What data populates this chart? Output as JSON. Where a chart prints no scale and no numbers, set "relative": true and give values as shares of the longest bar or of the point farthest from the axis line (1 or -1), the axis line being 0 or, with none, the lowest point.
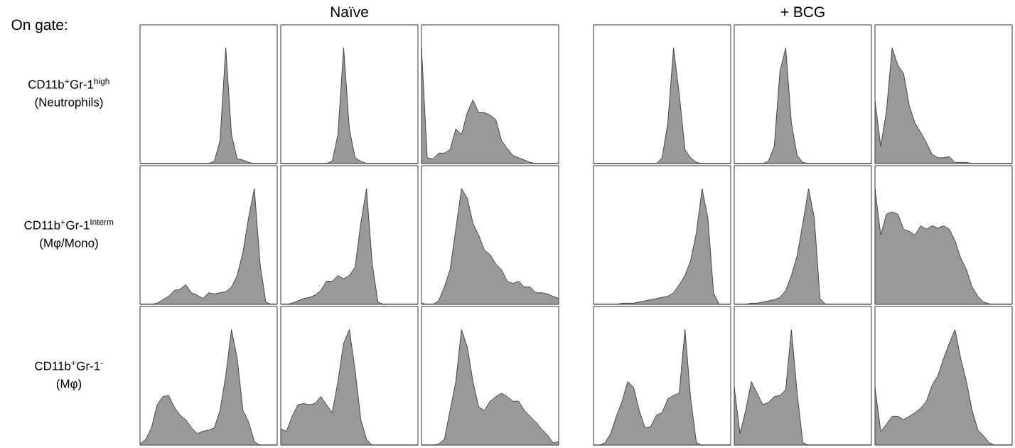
{
  "chart_data": [
    {
      "type": "area",
      "relative": true,
      "color": "#999999",
      "subtitle": "On gate:",
      "ylabel": "CD11b$^{+}$Gr-1$^{high}$",
      "annotations": [
        "(Neutrophils)"
      ],
      "categories": [
        null,
        null,
        null,
        null,
        null,
        null,
        null,
        null,
        null,
        null,
        null,
        null,
        null,
        null,
        null,
        null,
        null,
        null,
        null,
        null,
        null,
        null,
        null,
        null,
        null
      ],
      "values": [
        0,
        0,
        0,
        0,
        0,
        0,
        0,
        0,
        0,
        0,
        0,
        0,
        0,
        0.02,
        0.2,
        1.0,
        0.25,
        0.04,
        0.03,
        0.01,
        0,
        0,
        0,
        0,
        0
      ]
    },
    {
      "type": "area",
      "relative": true,
      "color": "#999999",
      "title": "Naïve",
      "categories": [
        null,
        null,
        null,
        null,
        null,
        null,
        null,
        null,
        null,
        null,
        null,
        null,
        null,
        null,
        null,
        null,
        null,
        null,
        null,
        null,
        null,
        null,
        null,
        null,
        null
      ],
      "values": [
        0,
        0,
        0,
        0,
        0,
        0,
        0,
        0,
        0,
        0.02,
        0.25,
        1.0,
        0.3,
        0.05,
        0.02,
        0,
        0,
        0,
        0,
        0,
        0,
        0,
        0,
        0,
        0
      ]
    },
    {
      "type": "area",
      "relative": true,
      "color": "#999999",
      "categories": [
        null,
        null,
        null,
        null,
        null,
        null,
        null,
        null,
        null,
        null,
        null,
        null,
        null,
        null,
        null,
        null,
        null,
        null,
        null,
        null,
        null,
        null,
        null,
        null,
        null
      ],
      "values": [
        1.0,
        0.05,
        0.04,
        0.09,
        0.09,
        0.12,
        0.3,
        0.25,
        0.44,
        0.55,
        0.44,
        0.44,
        0.42,
        0.38,
        0.2,
        0.13,
        0.07,
        0.05,
        0.03,
        0.01,
        0,
        0,
        0,
        0,
        0
      ]
    },
    {
      "type": "area",
      "relative": true,
      "color": "#999999",
      "categories": [
        null,
        null,
        null,
        null,
        null,
        null,
        null,
        null,
        null,
        null,
        null,
        null,
        null,
        null,
        null,
        null,
        null,
        null,
        null,
        null,
        null,
        null,
        null,
        null,
        null
      ],
      "values": [
        0,
        0,
        0,
        0,
        0,
        0,
        0,
        0,
        0,
        0,
        0,
        0,
        0.05,
        0.35,
        1.0,
        0.6,
        0.12,
        0.05,
        0.01,
        0,
        0,
        0,
        0,
        0,
        0
      ]
    },
    {
      "type": "area",
      "relative": true,
      "color": "#999999",
      "title": "+ BCG",
      "categories": [
        null,
        null,
        null,
        null,
        null,
        null,
        null,
        null,
        null,
        null,
        null,
        null,
        null,
        null,
        null,
        null,
        null,
        null,
        null,
        null,
        null,
        null,
        null,
        null,
        null
      ],
      "values": [
        0,
        0,
        0,
        0,
        0,
        0,
        0.02,
        0.15,
        0.8,
        1.0,
        0.35,
        0.07,
        0.01,
        0,
        0,
        0,
        0,
        0,
        0,
        0,
        0,
        0,
        0,
        0,
        0
      ]
    },
    {
      "type": "area",
      "relative": true,
      "color": "#999999",
      "categories": [
        null,
        null,
        null,
        null,
        null,
        null,
        null,
        null,
        null,
        null,
        null,
        null,
        null,
        null,
        null,
        null,
        null,
        null,
        null,
        null,
        null,
        null,
        null,
        null,
        null
      ],
      "values": [
        0.54,
        0.15,
        0.45,
        1.0,
        0.85,
        0.78,
        0.5,
        0.35,
        0.27,
        0.18,
        0.08,
        0.05,
        0.05,
        0.06,
        0.01,
        0.01,
        0.01,
        0,
        0,
        0,
        0,
        0,
        0,
        0,
        0
      ]
    },
    {
      "type": "area",
      "relative": true,
      "color": "#999999",
      "ylabel": "CD11b$^{+}$Gr-1$^{Interm}$",
      "annotations": [
        "(Mφ/Mono)"
      ],
      "categories": [
        null,
        null,
        null,
        null,
        null,
        null,
        null,
        null,
        null,
        null,
        null,
        null,
        null,
        null,
        null,
        null,
        null,
        null,
        null,
        null,
        null,
        null,
        null,
        null,
        null
      ],
      "values": [
        0,
        0,
        0,
        0.01,
        0.04,
        0.07,
        0.12,
        0.13,
        0.17,
        0.1,
        0.08,
        0.05,
        0.1,
        0.09,
        0.1,
        0.11,
        0.15,
        0.25,
        0.45,
        0.75,
        1.0,
        0.35,
        0.02,
        0,
        0
      ]
    },
    {
      "type": "area",
      "relative": true,
      "color": "#999999",
      "categories": [
        null,
        null,
        null,
        null,
        null,
        null,
        null,
        null,
        null,
        null,
        null,
        null,
        null,
        null,
        null,
        null,
        null,
        null,
        null,
        null,
        null,
        null,
        null,
        null,
        null
      ],
      "values": [
        0,
        0,
        0.01,
        0.03,
        0.05,
        0.06,
        0.08,
        0.12,
        0.2,
        0.2,
        0.25,
        0.22,
        0.25,
        0.32,
        0.7,
        1.0,
        0.35,
        0.02,
        0,
        0,
        0,
        0,
        0,
        0,
        0
      ]
    },
    {
      "type": "area",
      "relative": true,
      "color": "#999999",
      "categories": [
        null,
        null,
        null,
        null,
        null,
        null,
        null,
        null,
        null,
        null,
        null,
        null,
        null,
        null,
        null,
        null,
        null,
        null,
        null,
        null,
        null,
        null,
        null,
        null,
        null
      ],
      "values": [
        0.01,
        0,
        0,
        0.03,
        0.15,
        0.3,
        0.65,
        1.0,
        0.92,
        0.7,
        0.6,
        0.47,
        0.43,
        0.35,
        0.3,
        0.2,
        0.18,
        0.2,
        0.15,
        0.15,
        0.1,
        0.1,
        0.09,
        0.07,
        0.05
      ]
    },
    {
      "type": "area",
      "relative": true,
      "color": "#999999",
      "categories": [
        null,
        null,
        null,
        null,
        null,
        null,
        null,
        null,
        null,
        null,
        null,
        null,
        null,
        null,
        null,
        null,
        null,
        null,
        null,
        null,
        null,
        null,
        null,
        null,
        null
      ],
      "values": [
        0,
        0,
        0,
        0,
        0,
        0.01,
        0.01,
        0.01,
        0.02,
        0.03,
        0.04,
        0.05,
        0.06,
        0.07,
        0.1,
        0.17,
        0.25,
        0.38,
        0.62,
        1.0,
        0.75,
        0.1,
        0,
        0,
        0
      ]
    },
    {
      "type": "area",
      "relative": true,
      "color": "#999999",
      "categories": [
        null,
        null,
        null,
        null,
        null,
        null,
        null,
        null,
        null,
        null,
        null,
        null,
        null,
        null,
        null,
        null,
        null,
        null,
        null,
        null,
        null,
        null,
        null,
        null,
        null
      ],
      "values": [
        0,
        0,
        0,
        0.01,
        0.01,
        0.02,
        0.03,
        0.04,
        0.06,
        0.12,
        0.25,
        0.42,
        0.7,
        1.0,
        0.75,
        0.05,
        0,
        0,
        0,
        0,
        0,
        0,
        0,
        0,
        0
      ]
    },
    {
      "type": "area",
      "relative": true,
      "color": "#999999",
      "categories": [
        null,
        null,
        null,
        null,
        null,
        null,
        null,
        null,
        null,
        null,
        null,
        null,
        null,
        null,
        null,
        null,
        null,
        null,
        null,
        null,
        null,
        null,
        null,
        null,
        null
      ],
      "values": [
        1.0,
        0.6,
        0.78,
        0.8,
        0.78,
        0.65,
        0.63,
        0.6,
        0.68,
        0.65,
        0.68,
        0.66,
        0.68,
        0.65,
        0.55,
        0.4,
        0.3,
        0.15,
        0.07,
        0.02,
        0.005,
        0,
        0,
        0,
        0
      ]
    },
    {
      "type": "area",
      "relative": true,
      "color": "#999999",
      "ylabel": "CD11b$^{+}$Gr-1$^{-}$",
      "annotations": [
        "(Mφ)"
      ],
      "categories": [
        null,
        null,
        null,
        null,
        null,
        null,
        null,
        null,
        null,
        null,
        null,
        null,
        null,
        null,
        null,
        null,
        null,
        null,
        null,
        null,
        null,
        null,
        null,
        null,
        null
      ],
      "values": [
        0.01,
        0.05,
        0.15,
        0.35,
        0.42,
        0.43,
        0.33,
        0.26,
        0.22,
        0.15,
        0.1,
        0.12,
        0.13,
        0.15,
        0.3,
        0.6,
        1.0,
        0.75,
        0.3,
        0.2,
        0.03,
        0,
        0,
        0,
        0
      ]
    },
    {
      "type": "area",
      "relative": true,
      "color": "#999999",
      "categories": [
        null,
        null,
        null,
        null,
        null,
        null,
        null,
        null,
        null,
        null,
        null,
        null,
        null,
        null,
        null,
        null,
        null,
        null,
        null,
        null,
        null,
        null,
        null,
        null,
        null
      ],
      "values": [
        0.14,
        0.12,
        0.25,
        0.35,
        0.36,
        0.35,
        0.36,
        0.42,
        0.35,
        0.28,
        0.55,
        0.88,
        1.0,
        0.65,
        0.22,
        0.05,
        0,
        0,
        0,
        0,
        0,
        0,
        0,
        0,
        0
      ]
    },
    {
      "type": "area",
      "relative": true,
      "color": "#999999",
      "categories": [
        null,
        null,
        null,
        null,
        null,
        null,
        null,
        null,
        null,
        null,
        null,
        null,
        null,
        null,
        null,
        null,
        null,
        null,
        null,
        null,
        null,
        null,
        null,
        null,
        null
      ],
      "values": [
        0,
        0,
        0,
        0.01,
        0.05,
        0.3,
        0.55,
        1.0,
        0.85,
        0.55,
        0.33,
        0.3,
        0.38,
        0.42,
        0.45,
        0.42,
        0.38,
        0.38,
        0.3,
        0.25,
        0.2,
        0.14,
        0.09,
        0.02,
        0.03
      ]
    },
    {
      "type": "area",
      "relative": true,
      "color": "#999999",
      "categories": [
        null,
        null,
        null,
        null,
        null,
        null,
        null,
        null,
        null,
        null,
        null,
        null,
        null,
        null,
        null,
        null,
        null,
        null,
        null,
        null,
        null,
        null,
        null,
        null,
        null
      ],
      "values": [
        0,
        0,
        0.02,
        0.1,
        0.25,
        0.38,
        0.55,
        0.5,
        0.3,
        0.15,
        0.16,
        0.26,
        0.28,
        0.4,
        0.43,
        0.45,
        1.0,
        0.4,
        0.02,
        0,
        0,
        0,
        0,
        0,
        0
      ]
    },
    {
      "type": "area",
      "relative": true,
      "color": "#999999",
      "categories": [
        null,
        null,
        null,
        null,
        null,
        null,
        null,
        null,
        null,
        null,
        null,
        null,
        null,
        null,
        null,
        null,
        null,
        null,
        null,
        null,
        null,
        null,
        null,
        null,
        null
      ],
      "values": [
        0.5,
        0.1,
        0.3,
        0.55,
        0.45,
        0.35,
        0.37,
        0.42,
        0.43,
        0.48,
        1.0,
        0.45,
        0.02,
        0,
        0,
        0,
        0,
        0,
        0,
        0,
        0,
        0,
        0,
        0,
        0
      ]
    },
    {
      "type": "area",
      "relative": true,
      "color": "#999999",
      "categories": [
        null,
        null,
        null,
        null,
        null,
        null,
        null,
        null,
        null,
        null,
        null,
        null,
        null,
        null,
        null,
        null,
        null,
        null,
        null,
        null,
        null,
        null,
        null,
        null,
        null
      ],
      "values": [
        0.5,
        0.12,
        0.18,
        0.25,
        0.25,
        0.22,
        0.25,
        0.28,
        0.32,
        0.38,
        0.52,
        0.6,
        0.75,
        0.88,
        1.0,
        0.75,
        0.55,
        0.3,
        0.13,
        0.08,
        0.02,
        0,
        0,
        0,
        0
      ]
    }
  ]
}
